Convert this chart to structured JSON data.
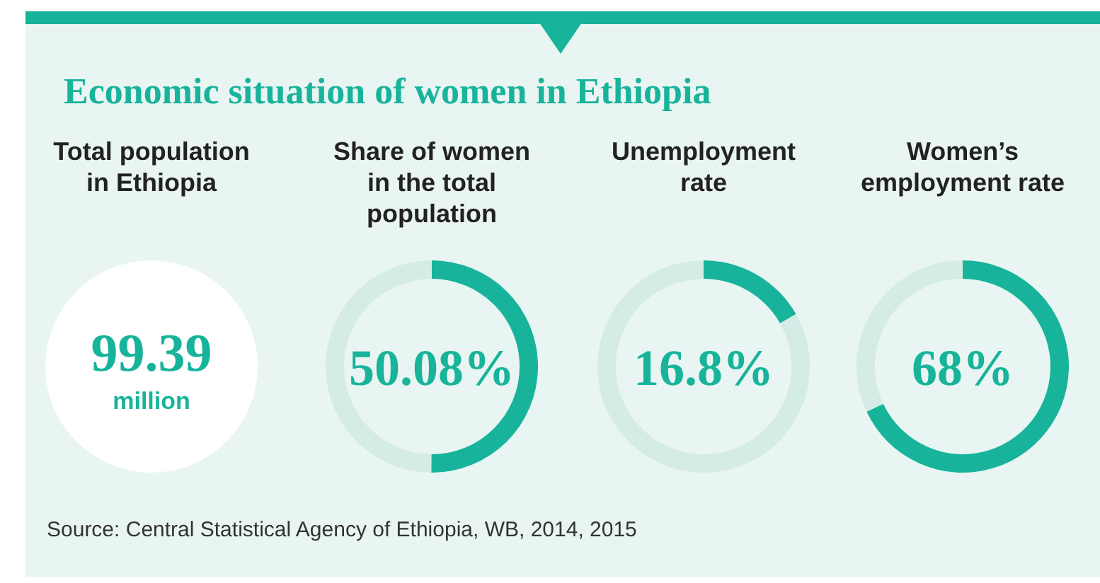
{
  "chart_data": [
    {
      "type": "other",
      "title": "Economic situation of women in Ethiopia",
      "subtitle": "Total population in Ethiopia",
      "annotations": [
        "99.39",
        "million",
        "Source: Central Statistical Agency of Ethiopia, WB, 2014, 2015"
      ]
    },
    {
      "type": "donut",
      "title": "Share of women in the total population",
      "categories": [
        null,
        null
      ],
      "values": [
        50.08,
        49.92
      ],
      "colors": [
        "#17b49b",
        "#d5ebe6"
      ],
      "annotations": [
        "50.08%"
      ]
    },
    {
      "type": "donut",
      "title": "Unemployment rate",
      "categories": [
        null,
        null
      ],
      "values": [
        16.8,
        83.2
      ],
      "colors": [
        "#17b49b",
        "#d5ebe6"
      ],
      "annotations": [
        "16.8%"
      ]
    },
    {
      "type": "donut",
      "title": "Women’s employment rate",
      "categories": [
        null,
        null
      ],
      "values": [
        68,
        32
      ],
      "colors": [
        "#17b49b",
        "#d5ebe6"
      ],
      "annotations": [
        "68%"
      ]
    }
  ]
}
